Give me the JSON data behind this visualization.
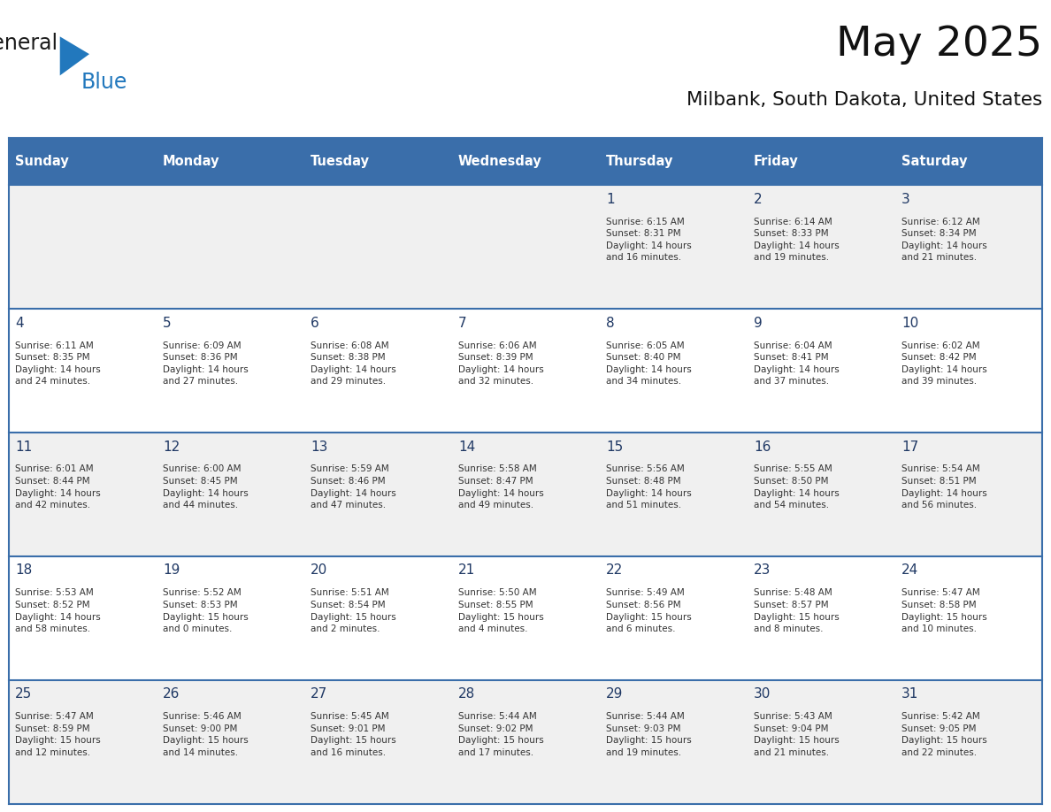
{
  "title": "May 2025",
  "subtitle": "Milbank, South Dakota, United States",
  "days_of_week": [
    "Sunday",
    "Monday",
    "Tuesday",
    "Wednesday",
    "Thursday",
    "Friday",
    "Saturday"
  ],
  "header_bg": "#3A6EAA",
  "header_text": "#FFFFFF",
  "row_bg_odd": "#F0F0F0",
  "row_bg_even": "#FFFFFF",
  "day_number_color": "#1F3864",
  "cell_text_color": "#333333",
  "grid_line_color": "#3A6EAA",
  "title_color": "#111111",
  "subtitle_color": "#111111",
  "logo_general_color": "#1a1a1a",
  "logo_blue_color": "#2278BD",
  "logo_triangle_color": "#2278BD",
  "weeks": [
    [
      {
        "day": "",
        "info": ""
      },
      {
        "day": "",
        "info": ""
      },
      {
        "day": "",
        "info": ""
      },
      {
        "day": "",
        "info": ""
      },
      {
        "day": "1",
        "info": "Sunrise: 6:15 AM\nSunset: 8:31 PM\nDaylight: 14 hours\nand 16 minutes."
      },
      {
        "day": "2",
        "info": "Sunrise: 6:14 AM\nSunset: 8:33 PM\nDaylight: 14 hours\nand 19 minutes."
      },
      {
        "day": "3",
        "info": "Sunrise: 6:12 AM\nSunset: 8:34 PM\nDaylight: 14 hours\nand 21 minutes."
      }
    ],
    [
      {
        "day": "4",
        "info": "Sunrise: 6:11 AM\nSunset: 8:35 PM\nDaylight: 14 hours\nand 24 minutes."
      },
      {
        "day": "5",
        "info": "Sunrise: 6:09 AM\nSunset: 8:36 PM\nDaylight: 14 hours\nand 27 minutes."
      },
      {
        "day": "6",
        "info": "Sunrise: 6:08 AM\nSunset: 8:38 PM\nDaylight: 14 hours\nand 29 minutes."
      },
      {
        "day": "7",
        "info": "Sunrise: 6:06 AM\nSunset: 8:39 PM\nDaylight: 14 hours\nand 32 minutes."
      },
      {
        "day": "8",
        "info": "Sunrise: 6:05 AM\nSunset: 8:40 PM\nDaylight: 14 hours\nand 34 minutes."
      },
      {
        "day": "9",
        "info": "Sunrise: 6:04 AM\nSunset: 8:41 PM\nDaylight: 14 hours\nand 37 minutes."
      },
      {
        "day": "10",
        "info": "Sunrise: 6:02 AM\nSunset: 8:42 PM\nDaylight: 14 hours\nand 39 minutes."
      }
    ],
    [
      {
        "day": "11",
        "info": "Sunrise: 6:01 AM\nSunset: 8:44 PM\nDaylight: 14 hours\nand 42 minutes."
      },
      {
        "day": "12",
        "info": "Sunrise: 6:00 AM\nSunset: 8:45 PM\nDaylight: 14 hours\nand 44 minutes."
      },
      {
        "day": "13",
        "info": "Sunrise: 5:59 AM\nSunset: 8:46 PM\nDaylight: 14 hours\nand 47 minutes."
      },
      {
        "day": "14",
        "info": "Sunrise: 5:58 AM\nSunset: 8:47 PM\nDaylight: 14 hours\nand 49 minutes."
      },
      {
        "day": "15",
        "info": "Sunrise: 5:56 AM\nSunset: 8:48 PM\nDaylight: 14 hours\nand 51 minutes."
      },
      {
        "day": "16",
        "info": "Sunrise: 5:55 AM\nSunset: 8:50 PM\nDaylight: 14 hours\nand 54 minutes."
      },
      {
        "day": "17",
        "info": "Sunrise: 5:54 AM\nSunset: 8:51 PM\nDaylight: 14 hours\nand 56 minutes."
      }
    ],
    [
      {
        "day": "18",
        "info": "Sunrise: 5:53 AM\nSunset: 8:52 PM\nDaylight: 14 hours\nand 58 minutes."
      },
      {
        "day": "19",
        "info": "Sunrise: 5:52 AM\nSunset: 8:53 PM\nDaylight: 15 hours\nand 0 minutes."
      },
      {
        "day": "20",
        "info": "Sunrise: 5:51 AM\nSunset: 8:54 PM\nDaylight: 15 hours\nand 2 minutes."
      },
      {
        "day": "21",
        "info": "Sunrise: 5:50 AM\nSunset: 8:55 PM\nDaylight: 15 hours\nand 4 minutes."
      },
      {
        "day": "22",
        "info": "Sunrise: 5:49 AM\nSunset: 8:56 PM\nDaylight: 15 hours\nand 6 minutes."
      },
      {
        "day": "23",
        "info": "Sunrise: 5:48 AM\nSunset: 8:57 PM\nDaylight: 15 hours\nand 8 minutes."
      },
      {
        "day": "24",
        "info": "Sunrise: 5:47 AM\nSunset: 8:58 PM\nDaylight: 15 hours\nand 10 minutes."
      }
    ],
    [
      {
        "day": "25",
        "info": "Sunrise: 5:47 AM\nSunset: 8:59 PM\nDaylight: 15 hours\nand 12 minutes."
      },
      {
        "day": "26",
        "info": "Sunrise: 5:46 AM\nSunset: 9:00 PM\nDaylight: 15 hours\nand 14 minutes."
      },
      {
        "day": "27",
        "info": "Sunrise: 5:45 AM\nSunset: 9:01 PM\nDaylight: 15 hours\nand 16 minutes."
      },
      {
        "day": "28",
        "info": "Sunrise: 5:44 AM\nSunset: 9:02 PM\nDaylight: 15 hours\nand 17 minutes."
      },
      {
        "day": "29",
        "info": "Sunrise: 5:44 AM\nSunset: 9:03 PM\nDaylight: 15 hours\nand 19 minutes."
      },
      {
        "day": "30",
        "info": "Sunrise: 5:43 AM\nSunset: 9:04 PM\nDaylight: 15 hours\nand 21 minutes."
      },
      {
        "day": "31",
        "info": "Sunrise: 5:42 AM\nSunset: 9:05 PM\nDaylight: 15 hours\nand 22 minutes."
      }
    ]
  ]
}
